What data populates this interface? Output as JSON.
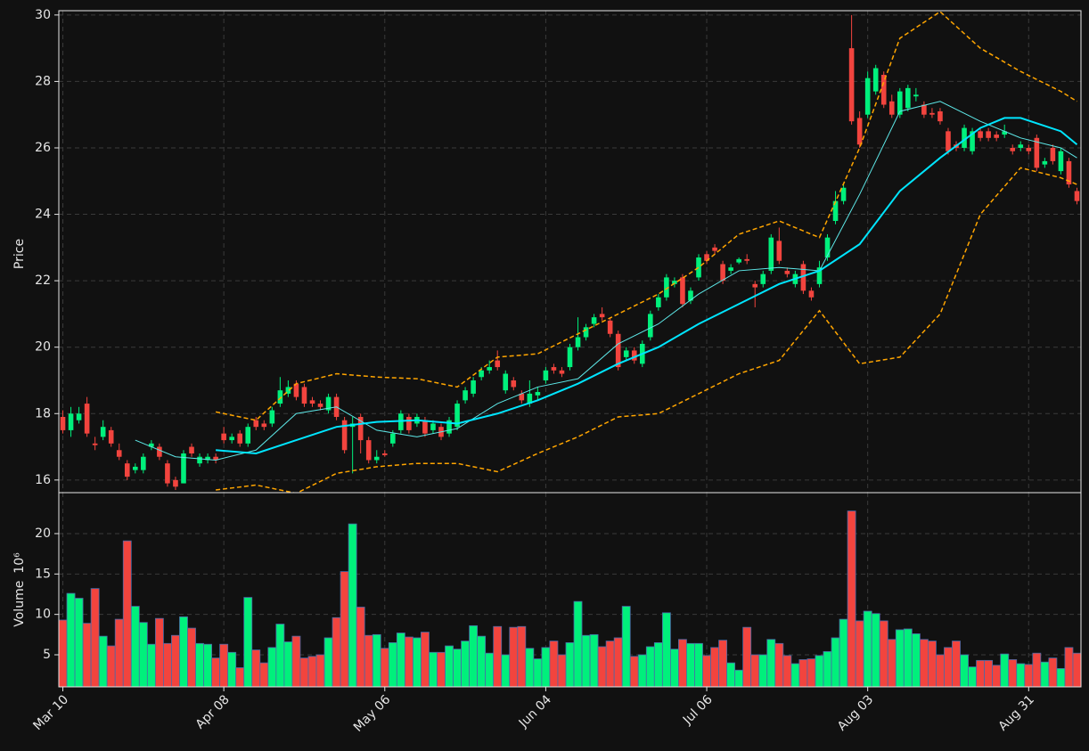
{
  "chart_data": [
    {
      "type": "candlestick",
      "ylabel": "Price",
      "up_color": "#00f07c",
      "down_color": "#f2443e",
      "grid": true,
      "xlim": [
        -0.5,
        126.5
      ],
      "ylim": [
        15.62,
        30.13
      ],
      "yticks": [
        16,
        18,
        20,
        22,
        24,
        26,
        28,
        30
      ],
      "open": [
        17.9,
        17.5,
        17.8,
        18.3,
        17.1,
        17.3,
        17.5,
        16.9,
        16.5,
        16.3,
        16.3,
        17.0,
        17.0,
        16.5,
        16.0,
        15.9,
        17.0,
        16.5,
        16.6,
        16.7,
        17.4,
        17.2,
        17.4,
        17.1,
        17.8,
        17.7,
        17.7,
        18.3,
        18.6,
        18.9,
        18.8,
        18.4,
        18.3,
        18.1,
        18.5,
        17.8,
        17.6,
        17.9,
        17.2,
        16.6,
        16.8,
        17.1,
        17.5,
        17.9,
        17.7,
        17.8,
        17.5,
        17.6,
        17.4,
        17.6,
        18.4,
        18.6,
        19.1,
        19.3,
        19.6,
        18.7,
        19.0,
        18.6,
        18.3,
        18.55,
        19.0,
        19.4,
        19.3,
        19.4,
        20.0,
        20.3,
        20.7,
        21.0,
        20.8,
        20.4,
        19.7,
        19.9,
        19.5,
        20.3,
        21.2,
        21.5,
        21.9,
        22.1,
        21.4,
        22.1,
        22.8,
        23.0,
        22.5,
        22.3,
        22.55,
        22.65,
        21.9,
        21.9,
        22.3,
        23.2,
        22.3,
        21.9,
        22.5,
        21.7,
        21.9,
        22.7,
        23.8,
        24.4,
        29.0,
        26.9,
        27.0,
        27.7,
        28.2,
        27.4,
        27.0,
        27.2,
        27.55,
        27.3,
        27.05,
        27.1,
        26.5,
        26.1,
        26.0,
        25.9,
        26.5,
        26.5,
        26.4,
        26.4,
        26.0,
        26.0,
        26.0,
        26.3,
        25.5,
        26.0,
        25.3,
        25.6,
        24.7
      ],
      "high": [
        18.1,
        18.2,
        18.2,
        18.5,
        17.3,
        17.8,
        17.6,
        17.1,
        16.6,
        16.5,
        16.8,
        17.2,
        17.1,
        16.6,
        16.1,
        16.9,
        17.1,
        16.8,
        16.8,
        16.8,
        17.6,
        17.4,
        17.5,
        17.7,
        17.9,
        17.8,
        18.2,
        19.1,
        19.0,
        19.0,
        18.9,
        18.5,
        18.4,
        18.6,
        18.6,
        17.9,
        17.9,
        18.0,
        17.3,
        16.9,
        16.9,
        17.5,
        18.1,
        18.0,
        18.0,
        17.9,
        17.8,
        17.7,
        17.9,
        18.4,
        18.8,
        19.1,
        19.4,
        19.6,
        19.9,
        19.3,
        19.1,
        18.7,
        19.0,
        18.8,
        19.4,
        19.5,
        19.4,
        20.1,
        20.9,
        20.7,
        21.0,
        21.2,
        20.9,
        20.5,
        20.0,
        20.0,
        20.2,
        21.1,
        21.6,
        22.2,
        22.1,
        22.2,
        21.8,
        22.8,
        22.9,
        23.1,
        22.6,
        22.5,
        22.7,
        22.8,
        22.0,
        22.3,
        23.4,
        23.6,
        22.4,
        22.3,
        22.6,
        21.8,
        22.6,
        23.4,
        24.7,
        24.9,
        30.0,
        27.1,
        28.3,
        28.5,
        28.3,
        27.6,
        27.8,
        27.9,
        27.8,
        27.4,
        27.2,
        27.2,
        26.6,
        26.2,
        26.7,
        26.6,
        26.6,
        26.6,
        26.5,
        26.7,
        26.1,
        26.2,
        26.1,
        26.4,
        25.7,
        26.1,
        26.0,
        25.7,
        24.8
      ],
      "low": [
        17.4,
        17.3,
        17.7,
        17.3,
        16.9,
        17.2,
        17.0,
        16.6,
        16.0,
        16.2,
        16.2,
        16.9,
        16.6,
        15.8,
        15.7,
        15.9,
        16.7,
        16.4,
        16.5,
        16.5,
        17.1,
        17.1,
        17.0,
        17.0,
        17.5,
        17.5,
        17.6,
        18.2,
        18.5,
        18.4,
        18.2,
        18.2,
        18.1,
        18.0,
        17.8,
        16.8,
        16.2,
        16.8,
        16.5,
        16.5,
        16.7,
        17.0,
        17.4,
        17.4,
        17.6,
        17.3,
        17.4,
        17.2,
        17.3,
        17.5,
        18.3,
        18.5,
        19.0,
        19.2,
        19.3,
        18.6,
        18.7,
        18.3,
        18.2,
        18.4,
        18.9,
        19.2,
        19.1,
        19.3,
        19.9,
        20.2,
        20.6,
        20.8,
        20.3,
        19.3,
        19.6,
        19.5,
        19.4,
        20.2,
        21.1,
        21.4,
        21.8,
        21.2,
        21.3,
        22.0,
        22.5,
        22.8,
        21.9,
        22.2,
        22.5,
        22.5,
        21.2,
        21.8,
        22.2,
        22.5,
        22.1,
        21.8,
        21.6,
        21.4,
        21.8,
        22.6,
        23.7,
        24.3,
        26.7,
        26.0,
        26.9,
        27.6,
        27.2,
        26.9,
        26.9,
        27.1,
        27.4,
        26.9,
        26.9,
        26.7,
        25.8,
        25.9,
        25.9,
        25.8,
        26.2,
        26.2,
        26.2,
        26.3,
        25.8,
        25.9,
        25.8,
        25.3,
        25.4,
        25.5,
        25.2,
        24.8,
        24.3
      ],
      "close": [
        17.5,
        18.0,
        18.0,
        17.4,
        17.05,
        17.6,
        17.1,
        16.7,
        16.1,
        16.4,
        16.7,
        17.1,
        16.7,
        15.9,
        15.8,
        16.8,
        16.8,
        16.7,
        16.7,
        16.6,
        17.2,
        17.3,
        17.1,
        17.6,
        17.6,
        17.6,
        18.1,
        18.7,
        18.8,
        18.5,
        18.3,
        18.3,
        18.2,
        18.5,
        17.9,
        16.9,
        17.7,
        17.2,
        16.6,
        16.7,
        16.75,
        17.4,
        18.0,
        17.5,
        17.9,
        17.4,
        17.7,
        17.3,
        17.8,
        18.3,
        18.7,
        19.0,
        19.3,
        19.4,
        19.4,
        19.2,
        18.8,
        18.4,
        18.6,
        18.65,
        19.3,
        19.3,
        19.2,
        20.0,
        20.3,
        20.6,
        20.9,
        20.9,
        20.4,
        19.4,
        19.9,
        19.6,
        20.1,
        21.0,
        21.5,
        22.1,
        22.0,
        21.3,
        21.7,
        22.7,
        22.6,
        22.9,
        22.0,
        22.4,
        22.65,
        22.6,
        21.8,
        22.2,
        23.3,
        22.6,
        22.2,
        22.2,
        21.7,
        21.5,
        22.4,
        23.3,
        24.4,
        24.8,
        26.8,
        26.1,
        28.1,
        28.4,
        27.3,
        27.0,
        27.7,
        27.8,
        27.6,
        27.0,
        27.0,
        26.8,
        25.9,
        26.0,
        26.6,
        26.5,
        26.3,
        26.3,
        26.3,
        26.5,
        25.9,
        26.1,
        25.9,
        25.4,
        25.6,
        25.6,
        25.9,
        24.9,
        24.4
      ],
      "series": [
        {
          "color": "#5ee8e8",
          "width": 1,
          "dash": false,
          "x": [
            9,
            14,
            19,
            24,
            29,
            34,
            39,
            44,
            49,
            54,
            59,
            64,
            69,
            74,
            79,
            84,
            89,
            94,
            99,
            104,
            109,
            114,
            119,
            124,
            126
          ],
          "values": [
            17.2,
            16.7,
            16.6,
            16.9,
            18.0,
            18.2,
            17.5,
            17.3,
            17.55,
            18.3,
            18.8,
            19.05,
            20.1,
            20.7,
            21.6,
            22.3,
            22.4,
            22.3,
            24.6,
            27.1,
            27.4,
            26.8,
            26.3,
            26.0,
            25.7
          ]
        },
        {
          "color": "#00e5ff",
          "width": 2,
          "dash": false,
          "x": [
            19,
            24,
            29,
            34,
            39,
            44,
            49,
            54,
            59,
            64,
            69,
            74,
            79,
            84,
            89,
            94,
            99,
            104,
            109,
            114,
            117,
            119,
            124,
            126
          ],
          "values": [
            16.9,
            16.8,
            17.2,
            17.6,
            17.75,
            17.8,
            17.7,
            18.0,
            18.4,
            18.9,
            19.5,
            20.0,
            20.7,
            21.3,
            21.9,
            22.3,
            23.1,
            24.7,
            25.7,
            26.6,
            26.9,
            26.9,
            26.5,
            26.1
          ]
        },
        {
          "color": "#ffa500",
          "width": 1.5,
          "dash": true,
          "x": [
            19,
            24,
            29,
            34,
            39,
            44,
            49,
            54,
            59,
            64,
            69,
            74,
            79,
            84,
            89,
            94,
            99,
            104,
            109,
            114,
            119,
            124,
            126
          ],
          "values": [
            18.05,
            17.8,
            18.9,
            19.2,
            19.1,
            19.05,
            18.8,
            19.7,
            19.8,
            20.4,
            21.0,
            21.6,
            22.4,
            23.4,
            23.8,
            23.3,
            26.0,
            29.3,
            30.1,
            29.0,
            28.3,
            27.7,
            27.4
          ]
        },
        {
          "color": "#ffa500",
          "width": 1.5,
          "dash": true,
          "x": [
            19,
            24,
            29,
            34,
            39,
            44,
            49,
            54,
            59,
            64,
            69,
            74,
            79,
            84,
            89,
            94,
            99,
            104,
            109,
            114,
            119,
            124,
            126
          ],
          "values": [
            15.7,
            15.85,
            15.6,
            16.2,
            16.4,
            16.5,
            16.5,
            16.25,
            16.8,
            17.3,
            17.9,
            18.0,
            18.6,
            19.2,
            19.6,
            21.1,
            19.5,
            19.7,
            21.0,
            24.0,
            25.4,
            25.1,
            24.9
          ]
        }
      ]
    },
    {
      "type": "bar",
      "ylabel": "Volume",
      "ylabel_scale": "10⁶",
      "edge_color": "#4a6aa8",
      "grid": true,
      "xlim": [
        -0.5,
        126.5
      ],
      "ylim": [
        1.03,
        25.07
      ],
      "yticks": [
        5,
        10,
        15,
        20
      ],
      "xticks": [
        {
          "value": 0,
          "label": "Mar 10"
        },
        {
          "value": 20,
          "label": "Apr 08"
        },
        {
          "value": 40,
          "label": "May 06"
        },
        {
          "value": 60,
          "label": "Jun 04"
        },
        {
          "value": 80,
          "label": "Jul 06"
        },
        {
          "value": 100,
          "label": "Aug 03"
        },
        {
          "value": 120,
          "label": "Aug 31"
        }
      ],
      "values": [
        9.3,
        12.6,
        12.0,
        8.9,
        13.2,
        7.3,
        6.1,
        9.4,
        19.1,
        11.0,
        9.0,
        6.3,
        9.5,
        6.4,
        7.4,
        9.7,
        8.3,
        6.4,
        6.3,
        4.6,
        6.3,
        5.3,
        3.4,
        12.1,
        5.6,
        4.0,
        5.9,
        8.8,
        6.6,
        7.3,
        4.6,
        4.8,
        5.0,
        7.1,
        9.6,
        15.3,
        21.2,
        10.9,
        7.4,
        7.5,
        5.8,
        6.5,
        7.7,
        7.2,
        7.1,
        7.8,
        5.3,
        5.3,
        6.1,
        5.7,
        6.7,
        8.6,
        7.3,
        5.2,
        8.5,
        5.0,
        8.4,
        8.5,
        5.8,
        4.5,
        5.9,
        6.7,
        5.0,
        6.5,
        11.6,
        7.4,
        7.5,
        6.0,
        6.7,
        7.1,
        11.0,
        4.8,
        5.0,
        6.0,
        6.5,
        10.2,
        5.7,
        6.9,
        6.4,
        6.4,
        4.9,
        5.9,
        6.8,
        4.0,
        3.1,
        8.4,
        5.0,
        5.0,
        6.9,
        6.4,
        4.9,
        3.9,
        4.4,
        4.5,
        4.9,
        5.4,
        7.1,
        9.4,
        22.8,
        9.2,
        10.4,
        10.1,
        9.2,
        6.9,
        8.1,
        8.2,
        7.6,
        6.9,
        6.7,
        5.0,
        5.9,
        6.7,
        5.0,
        3.5,
        4.3,
        4.3,
        3.7,
        5.1,
        4.4,
        3.9,
        3.8,
        5.2,
        4.1,
        4.6,
        3.3,
        5.9,
        5.2
      ]
    }
  ]
}
